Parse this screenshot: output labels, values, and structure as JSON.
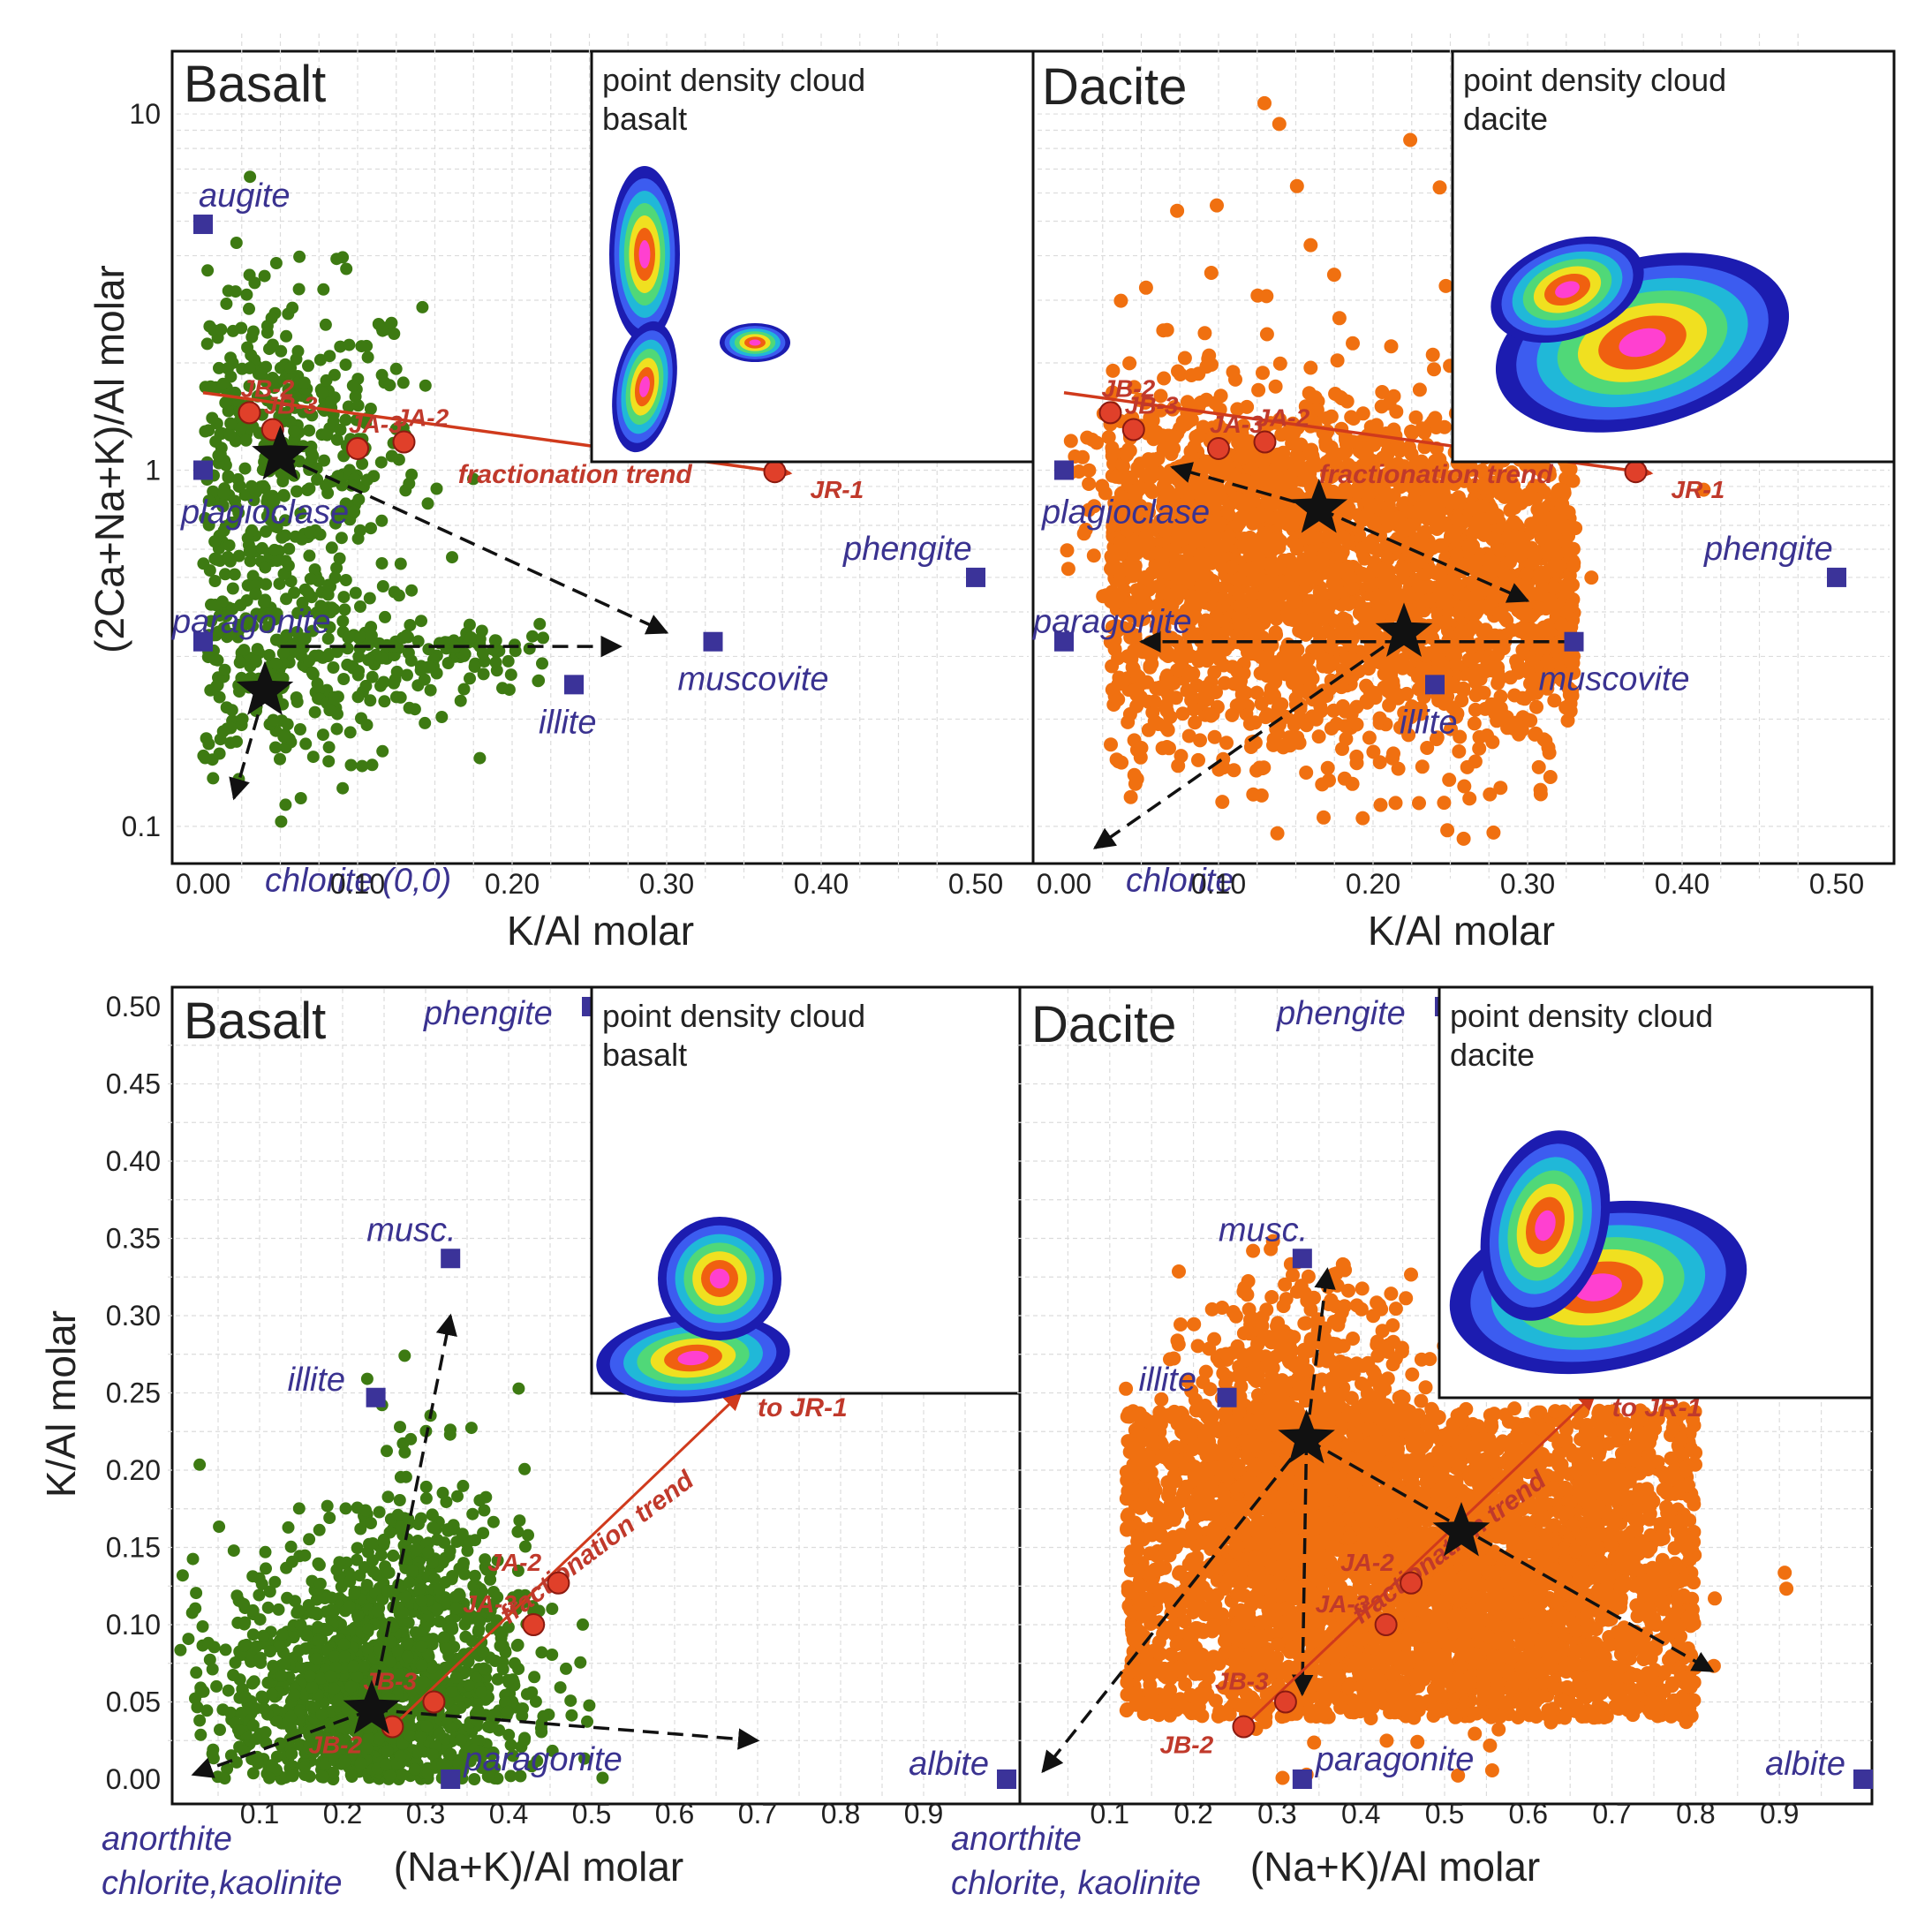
{
  "chart_data": [
    {
      "type": "scatter",
      "title": "Basalt",
      "xlabel": "K/Al molar",
      "ylabel": "(2Ca+Na+K)/Al molar",
      "xlim": [
        0,
        0.5
      ],
      "ylim": [
        0.08,
        15
      ],
      "yscale": "log",
      "xticks": [
        "0.00",
        "0.10",
        "0.20",
        "0.30",
        "0.40",
        "0.50"
      ],
      "yticks": [
        "0.1",
        "1",
        "10"
      ],
      "grid": true,
      "point_color": "#3d7a12",
      "minerals": [
        {
          "name": "augite",
          "x": 0.0,
          "y": 4.9
        },
        {
          "name": "plagioclase",
          "x": 0.0,
          "y": 1.0
        },
        {
          "name": "paragonite",
          "x": 0.0,
          "y": 0.33
        },
        {
          "name": "illite",
          "x": 0.24,
          "y": 0.25
        },
        {
          "name": "muscovite",
          "x": 0.33,
          "y": 0.33
        },
        {
          "name": "phengite",
          "x": 0.5,
          "y": 0.5
        },
        {
          "name": "chlorite (0,0)",
          "x": 0.02,
          "y": 0.085
        }
      ],
      "samples": [
        {
          "name": "JB-2",
          "x": 0.03,
          "y": 1.45
        },
        {
          "name": "JB-3",
          "x": 0.045,
          "y": 1.3
        },
        {
          "name": "JA-3",
          "x": 0.1,
          "y": 1.15
        },
        {
          "name": "JA-2",
          "x": 0.13,
          "y": 1.2
        },
        {
          "name": "JR-1",
          "x": 0.37,
          "y": 0.99
        }
      ],
      "fractionation_label": "fractionation trend",
      "stars": [
        {
          "x": 0.05,
          "y": 1.1
        },
        {
          "x": 0.04,
          "y": 0.24
        }
      ],
      "inset_title": [
        "point density cloud",
        "basalt"
      ]
    },
    {
      "type": "scatter",
      "title": "Dacite",
      "xlabel": "K/Al molar",
      "ylabel": "",
      "xlim": [
        0,
        0.5
      ],
      "ylim": [
        0.08,
        15
      ],
      "yscale": "log",
      "xticks": [
        "0.00",
        "0.10",
        "0.20",
        "0.30",
        "0.40",
        "0.50"
      ],
      "grid": true,
      "point_color": "#f07010",
      "minerals": [
        {
          "name": "plagioclase",
          "x": 0.0,
          "y": 1.0
        },
        {
          "name": "paragonite",
          "x": 0.0,
          "y": 0.33
        },
        {
          "name": "illite",
          "x": 0.24,
          "y": 0.25
        },
        {
          "name": "muscovite",
          "x": 0.33,
          "y": 0.33
        },
        {
          "name": "phengite",
          "x": 0.5,
          "y": 0.5
        },
        {
          "name": "chlorite",
          "x": 0.02,
          "y": 0.085
        }
      ],
      "samples": [
        {
          "name": "JB-2",
          "x": 0.03,
          "y": 1.45
        },
        {
          "name": "JB-3",
          "x": 0.045,
          "y": 1.3
        },
        {
          "name": "JA-3",
          "x": 0.1,
          "y": 1.15
        },
        {
          "name": "JA-2",
          "x": 0.13,
          "y": 1.2
        },
        {
          "name": "JR-1",
          "x": 0.37,
          "y": 0.99
        }
      ],
      "fractionation_label": "fractionation trend",
      "stars": [
        {
          "x": 0.165,
          "y": 0.78
        },
        {
          "x": 0.22,
          "y": 0.35
        }
      ],
      "inset_title": [
        "point density cloud",
        "dacite"
      ]
    },
    {
      "type": "scatter",
      "title": "Basalt",
      "xlabel": "(Na+K)/Al molar",
      "ylabel": "K/Al molar",
      "xlim": [
        0,
        1.0
      ],
      "ylim": [
        0,
        0.5
      ],
      "xticks": [
        "0.1",
        "0.2",
        "0.3",
        "0.4",
        "0.5",
        "0.6",
        "0.7",
        "0.8",
        "0.9"
      ],
      "yticks": [
        "0.00",
        "0.05",
        "0.10",
        "0.15",
        "0.20",
        "0.25",
        "0.30",
        "0.35",
        "0.40",
        "0.45",
        "0.50"
      ],
      "grid": true,
      "point_color": "#3d7a12",
      "minerals": [
        {
          "name": "phengite",
          "x": 0.5,
          "y": 0.5
        },
        {
          "name": "musc.",
          "x": 0.33,
          "y": 0.337
        },
        {
          "name": "illite",
          "x": 0.24,
          "y": 0.247
        },
        {
          "name": "paragonite",
          "x": 0.33,
          "y": 0.0
        },
        {
          "name": "albite",
          "x": 1.0,
          "y": 0.0
        },
        {
          "name": "anorthite",
          "x": 0.0,
          "y": 0.0
        },
        {
          "name": "chlorite,kaolinite",
          "x": 0.0,
          "y": 0.0
        }
      ],
      "samples": [
        {
          "name": "JB-2",
          "x": 0.26,
          "y": 0.034
        },
        {
          "name": "JB-3",
          "x": 0.31,
          "y": 0.05
        },
        {
          "name": "JA-3",
          "x": 0.43,
          "y": 0.1
        },
        {
          "name": "JA-2",
          "x": 0.46,
          "y": 0.127
        }
      ],
      "fractionation_label": "fractionation trend",
      "trend_end_label": "to JR-1",
      "stars": [
        {
          "x": 0.235,
          "y": 0.045
        }
      ],
      "inset_title": [
        "point density cloud",
        "basalt"
      ]
    },
    {
      "type": "scatter",
      "title": "Dacite",
      "xlabel": "(Na+K)/Al molar",
      "ylabel": "",
      "xlim": [
        0,
        1.0
      ],
      "ylim": [
        0,
        0.5
      ],
      "xticks": [
        "0.1",
        "0.2",
        "0.3",
        "0.4",
        "0.5",
        "0.6",
        "0.7",
        "0.8",
        "0.9"
      ],
      "grid": true,
      "point_color": "#f07010",
      "minerals": [
        {
          "name": "phengite",
          "x": 0.5,
          "y": 0.5
        },
        {
          "name": "musc.",
          "x": 0.33,
          "y": 0.337
        },
        {
          "name": "illite",
          "x": 0.24,
          "y": 0.247
        },
        {
          "name": "paragonite",
          "x": 0.33,
          "y": 0.0
        },
        {
          "name": "albite",
          "x": 1.0,
          "y": 0.0
        },
        {
          "name": "anorthite",
          "x": 0.0,
          "y": 0.0
        },
        {
          "name": "chlorite, kaolinite",
          "x": 0.0,
          "y": 0.0
        }
      ],
      "samples": [
        {
          "name": "JB-2",
          "x": 0.26,
          "y": 0.034
        },
        {
          "name": "JB-3",
          "x": 0.31,
          "y": 0.05
        },
        {
          "name": "JA-3",
          "x": 0.43,
          "y": 0.1
        },
        {
          "name": "JA-2",
          "x": 0.46,
          "y": 0.127
        }
      ],
      "fractionation_label": "fractionation trend",
      "trend_end_label": "to JR-1",
      "stars": [
        {
          "x": 0.335,
          "y": 0.22
        },
        {
          "x": 0.52,
          "y": 0.16
        }
      ],
      "inset_title": [
        "point density cloud",
        "dacite"
      ]
    }
  ]
}
